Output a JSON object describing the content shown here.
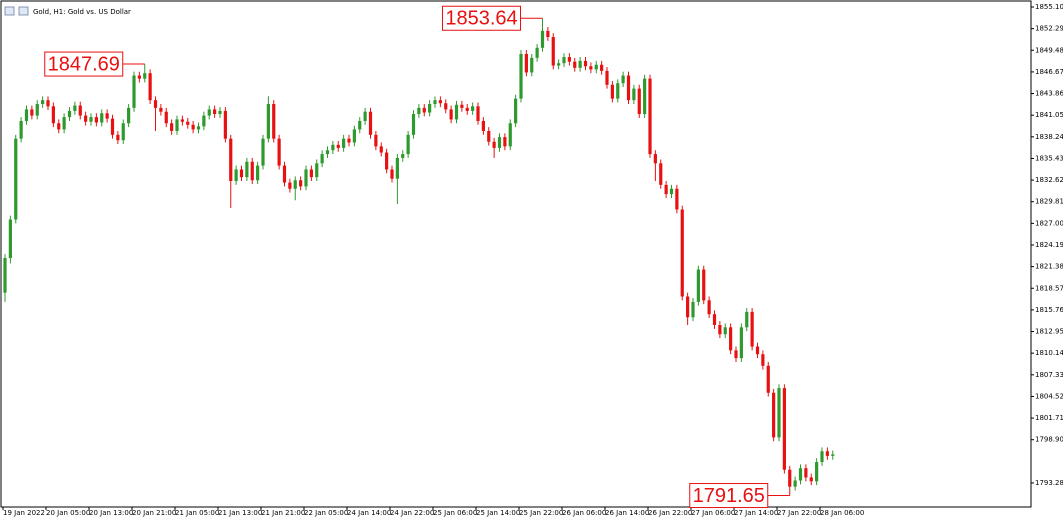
{
  "chart_data": {
    "type": "candlestick",
    "title": "Gold, H1:  Gold vs. US Dollar",
    "up_color": "#2e9a2e",
    "down_color": "#e81010",
    "ylim": [
      1790.16,
      1855.75
    ],
    "yticks": [
      {
        "value": 1855.1,
        "label": "1855.10"
      },
      1852.29,
      1849.48,
      1846.67,
      1843.86,
      1841.05,
      1838.24,
      1835.43,
      1832.62,
      1829.81,
      {
        "value": 1827,
        "label": "1827.00"
      },
      1824.19,
      1821.38,
      1818.57,
      1815.76,
      1812.95,
      1810.14,
      1807.33,
      1804.52,
      1801.71,
      {
        "value": 1798.9,
        "label": "1798.90"
      },
      1793.28
    ],
    "xticks": [
      "19 Jan 2022",
      "20 Jan 05:00",
      "20 Jan 13:00",
      "20 Jan 21:00",
      "21 Jan 05:00",
      "21 Jan 13:00",
      "21 Jan 21:00",
      "22 Jan 05:00",
      "24 Jan 14:00",
      "24 Jan 22:00",
      "25 Jan 06:00",
      "25 Jan 14:00",
      "25 Jan 22:00",
      "26 Jan 06:00",
      "26 Jan 14:00",
      "26 Jan 22:00",
      "27 Jan 06:00",
      "27 Jan 14:00",
      "27 Jan 22:00",
      "28 Jan 06:00"
    ],
    "high_labels": [
      1847.69,
      1853.64
    ],
    "low_labels": [
      1791.65
    ],
    "ohlc": [
      [
        1818.0,
        1823.0,
        1816.8,
        1822.5
      ],
      [
        1822.5,
        1828.0,
        1821.8,
        1827.5
      ],
      [
        1827.5,
        1838.5,
        1827.0,
        1838.0
      ],
      [
        1838.0,
        1840.8,
        1837.5,
        1840.3
      ],
      [
        1840.3,
        1842.3,
        1839.8,
        1841.8
      ],
      [
        1841.8,
        1842.3,
        1840.5,
        1841.0
      ],
      [
        1841.0,
        1843.0,
        1840.5,
        1842.5
      ],
      [
        1842.5,
        1843.5,
        1842.0,
        1843.0
      ],
      [
        1843.0,
        1843.5,
        1841.7,
        1842.2
      ],
      [
        1842.2,
        1842.7,
        1839.5,
        1840.0
      ],
      [
        1840.0,
        1840.5,
        1838.7,
        1839.2
      ],
      [
        1839.2,
        1841.3,
        1838.7,
        1840.8
      ],
      [
        1840.8,
        1842.1,
        1840.3,
        1841.6
      ],
      [
        1841.6,
        1842.8,
        1841.1,
        1842.3
      ],
      [
        1842.3,
        1842.8,
        1840.5,
        1841.0
      ],
      [
        1841.0,
        1841.5,
        1839.7,
        1840.2
      ],
      [
        1840.2,
        1841.3,
        1839.7,
        1840.8
      ],
      [
        1840.8,
        1841.3,
        1839.6,
        1840.1
      ],
      [
        1840.1,
        1841.8,
        1839.6,
        1841.3
      ],
      [
        1841.3,
        1841.8,
        1840.1,
        1840.6
      ],
      [
        1840.6,
        1841.1,
        1838.0,
        1838.5
      ],
      [
        1838.5,
        1839.0,
        1837.3,
        1837.8
      ],
      [
        1837.8,
        1840.5,
        1837.3,
        1840.0
      ],
      [
        1840.0,
        1842.5,
        1839.5,
        1842.0
      ],
      [
        1842.0,
        1846.7,
        1841.5,
        1846.2
      ],
      [
        1846.2,
        1846.7,
        1845.3,
        1845.8
      ],
      [
        1845.8,
        1847.69,
        1845.3,
        1846.5
      ],
      [
        1846.5,
        1847.0,
        1842.5,
        1843.0
      ],
      [
        1843.0,
        1843.5,
        1839.0,
        1842.0
      ],
      [
        1842.0,
        1842.5,
        1841.0,
        1841.5
      ],
      [
        1841.5,
        1842.0,
        1839.5,
        1840.0
      ],
      [
        1840.0,
        1840.5,
        1838.5,
        1839.0
      ],
      [
        1839.0,
        1841.0,
        1838.5,
        1840.5
      ],
      [
        1840.5,
        1841.0,
        1839.7,
        1840.2
      ],
      [
        1840.2,
        1840.7,
        1839.3,
        1839.8
      ],
      [
        1839.8,
        1840.3,
        1838.7,
        1839.2
      ],
      [
        1839.2,
        1840.1,
        1838.7,
        1839.6
      ],
      [
        1839.6,
        1841.5,
        1839.1,
        1841.0
      ],
      [
        1841.0,
        1842.3,
        1840.5,
        1841.8
      ],
      [
        1841.8,
        1842.3,
        1840.7,
        1841.2
      ],
      [
        1841.2,
        1842.1,
        1840.7,
        1841.6
      ],
      [
        1841.6,
        1842.1,
        1837.5,
        1838.0
      ],
      [
        1838.0,
        1838.5,
        1829.0,
        1832.5
      ],
      [
        1832.5,
        1834.5,
        1832.0,
        1834.0
      ],
      [
        1834.0,
        1834.5,
        1832.5,
        1833.0
      ],
      [
        1833.0,
        1835.5,
        1832.5,
        1835.0
      ],
      [
        1835.0,
        1835.5,
        1832.1,
        1832.6
      ],
      [
        1832.6,
        1835.0,
        1832.1,
        1834.5
      ],
      [
        1834.5,
        1838.5,
        1834.0,
        1838.0
      ],
      [
        1838.0,
        1843.5,
        1837.5,
        1842.5
      ],
      [
        1842.5,
        1843.0,
        1837.5,
        1838.0
      ],
      [
        1838.0,
        1838.5,
        1834.0,
        1834.5
      ],
      [
        1834.5,
        1835.0,
        1831.8,
        1832.3
      ],
      [
        1832.3,
        1832.8,
        1831.0,
        1831.5
      ],
      [
        1831.5,
        1833.1,
        1830.0,
        1832.6
      ],
      [
        1832.6,
        1833.1,
        1831.3,
        1831.8
      ],
      [
        1831.8,
        1834.5,
        1831.3,
        1834.0
      ],
      [
        1834.0,
        1834.5,
        1832.5,
        1833.0
      ],
      [
        1833.0,
        1835.3,
        1832.5,
        1834.8
      ],
      [
        1834.8,
        1836.5,
        1834.3,
        1836.0
      ],
      [
        1836.0,
        1837.0,
        1835.5,
        1836.5
      ],
      [
        1836.5,
        1837.7,
        1836.0,
        1837.2
      ],
      [
        1837.2,
        1837.7,
        1836.3,
        1836.8
      ],
      [
        1836.8,
        1838.5,
        1836.3,
        1838.0
      ],
      [
        1838.0,
        1838.5,
        1837.0,
        1837.5
      ],
      [
        1837.5,
        1839.7,
        1837.0,
        1839.2
      ],
      [
        1839.2,
        1840.8,
        1838.7,
        1840.3
      ],
      [
        1840.3,
        1842.0,
        1839.8,
        1841.5
      ],
      [
        1841.5,
        1842.0,
        1838.0,
        1838.5
      ],
      [
        1838.5,
        1839.0,
        1836.5,
        1837.0
      ],
      [
        1837.0,
        1837.5,
        1835.7,
        1836.2
      ],
      [
        1836.2,
        1836.7,
        1833.5,
        1834.0
      ],
      [
        1834.0,
        1834.5,
        1832.3,
        1832.8
      ],
      [
        1832.8,
        1836.0,
        1829.5,
        1835.5
      ],
      [
        1835.5,
        1836.5,
        1835.0,
        1836.0
      ],
      [
        1836.0,
        1839.0,
        1835.5,
        1838.5
      ],
      [
        1838.5,
        1841.7,
        1838.0,
        1841.2
      ],
      [
        1841.2,
        1842.5,
        1840.7,
        1842.0
      ],
      [
        1842.0,
        1842.5,
        1840.9,
        1841.4
      ],
      [
        1841.4,
        1843.0,
        1840.9,
        1842.5
      ],
      [
        1842.5,
        1843.5,
        1842.0,
        1843.0
      ],
      [
        1843.0,
        1843.5,
        1842.1,
        1842.6
      ],
      [
        1842.6,
        1843.1,
        1841.3,
        1841.8
      ],
      [
        1841.8,
        1842.3,
        1840.0,
        1840.5
      ],
      [
        1840.5,
        1842.9,
        1840.0,
        1842.4
      ],
      [
        1842.4,
        1842.9,
        1841.5,
        1842.0
      ],
      [
        1842.0,
        1842.5,
        1841.1,
        1841.6
      ],
      [
        1841.6,
        1842.7,
        1841.1,
        1842.2
      ],
      [
        1842.2,
        1842.7,
        1839.8,
        1840.3
      ],
      [
        1840.3,
        1840.8,
        1838.5,
        1839.0
      ],
      [
        1839.0,
        1839.5,
        1837.1,
        1837.6
      ],
      [
        1837.6,
        1838.1,
        1835.5,
        1836.8
      ],
      [
        1836.8,
        1838.7,
        1836.3,
        1838.2
      ],
      [
        1838.2,
        1838.7,
        1836.5,
        1837.0
      ],
      [
        1837.0,
        1840.5,
        1836.5,
        1840.0
      ],
      [
        1840.0,
        1843.7,
        1839.5,
        1843.2
      ],
      [
        1843.2,
        1849.5,
        1842.7,
        1849.0
      ],
      [
        1849.0,
        1849.5,
        1846.1,
        1846.6
      ],
      [
        1846.6,
        1849.0,
        1846.1,
        1848.5
      ],
      [
        1848.5,
        1850.3,
        1848.0,
        1849.8
      ],
      [
        1849.8,
        1853.64,
        1849.3,
        1852.0
      ],
      [
        1852.0,
        1852.5,
        1850.7,
        1851.2
      ],
      [
        1851.2,
        1851.7,
        1847.0,
        1847.5
      ],
      [
        1847.5,
        1848.3,
        1847.0,
        1847.8
      ],
      [
        1847.8,
        1849.1,
        1847.3,
        1848.6
      ],
      [
        1848.6,
        1849.1,
        1847.5,
        1848.0
      ],
      [
        1848.0,
        1848.5,
        1846.7,
        1847.2
      ],
      [
        1847.2,
        1848.6,
        1846.7,
        1848.1
      ],
      [
        1848.1,
        1848.6,
        1846.9,
        1847.4
      ],
      [
        1847.4,
        1847.9,
        1846.5,
        1847.0
      ],
      [
        1847.0,
        1848.1,
        1846.5,
        1847.6
      ],
      [
        1847.6,
        1848.1,
        1846.3,
        1846.8
      ],
      [
        1846.8,
        1847.3,
        1844.5,
        1845.0
      ],
      [
        1845.0,
        1845.5,
        1842.7,
        1843.2
      ],
      [
        1843.2,
        1845.7,
        1842.7,
        1845.2
      ],
      [
        1845.2,
        1846.7,
        1844.7,
        1846.2
      ],
      [
        1846.2,
        1846.7,
        1842.5,
        1843.0
      ],
      [
        1843.0,
        1845.0,
        1842.5,
        1844.5
      ],
      [
        1844.5,
        1845.0,
        1840.7,
        1841.2
      ],
      [
        1841.2,
        1846.3,
        1840.7,
        1845.8
      ],
      [
        1845.8,
        1846.3,
        1835.5,
        1836.0
      ],
      [
        1836.0,
        1836.5,
        1832.5,
        1834.8
      ],
      [
        1834.8,
        1835.3,
        1831.5,
        1832.0
      ],
      [
        1832.0,
        1832.5,
        1830.3,
        1830.8
      ],
      [
        1830.8,
        1832.0,
        1830.3,
        1831.5
      ],
      [
        1831.5,
        1832.0,
        1828.3,
        1828.8
      ],
      [
        1828.8,
        1829.3,
        1817.0,
        1817.5
      ],
      [
        1817.5,
        1818.0,
        1813.8,
        1814.8
      ],
      [
        1814.8,
        1817.3,
        1814.3,
        1816.8
      ],
      [
        1816.8,
        1821.5,
        1816.3,
        1821.0
      ],
      [
        1821.0,
        1821.5,
        1816.5,
        1817.0
      ],
      [
        1817.0,
        1817.5,
        1814.7,
        1815.2
      ],
      [
        1815.2,
        1815.7,
        1813.3,
        1813.8
      ],
      [
        1813.8,
        1814.3,
        1812.1,
        1812.6
      ],
      [
        1812.6,
        1814.0,
        1812.1,
        1813.5
      ],
      [
        1813.5,
        1814.0,
        1810.0,
        1810.5
      ],
      [
        1810.5,
        1811.0,
        1809.0,
        1809.5
      ],
      [
        1809.5,
        1814.0,
        1809.0,
        1813.5
      ],
      [
        1813.5,
        1816.0,
        1813.0,
        1815.5
      ],
      [
        1815.5,
        1816.0,
        1810.5,
        1811.0
      ],
      [
        1811.0,
        1811.5,
        1809.5,
        1810.0
      ],
      [
        1810.0,
        1810.5,
        1808.0,
        1808.5
      ],
      [
        1808.5,
        1809.0,
        1804.5,
        1805.0
      ],
      [
        1805.0,
        1805.5,
        1798.7,
        1799.2
      ],
      [
        1799.2,
        1806.1,
        1798.7,
        1805.6
      ],
      [
        1805.6,
        1806.1,
        1794.5,
        1795.0
      ],
      [
        1795.0,
        1795.5,
        1791.65,
        1792.8
      ],
      [
        1792.8,
        1794.1,
        1792.3,
        1793.6
      ],
      [
        1793.6,
        1795.7,
        1793.1,
        1795.2
      ],
      [
        1795.2,
        1795.7,
        1793.5,
        1794.0
      ],
      [
        1794.0,
        1794.5,
        1793.0,
        1793.5
      ],
      [
        1793.5,
        1796.5,
        1793.0,
        1796.0
      ],
      [
        1796.0,
        1797.9,
        1795.5,
        1797.4
      ],
      [
        1797.4,
        1797.9,
        1796.3,
        1796.8
      ],
      [
        1796.8,
        1797.5,
        1796.3,
        1797.0
      ]
    ]
  }
}
